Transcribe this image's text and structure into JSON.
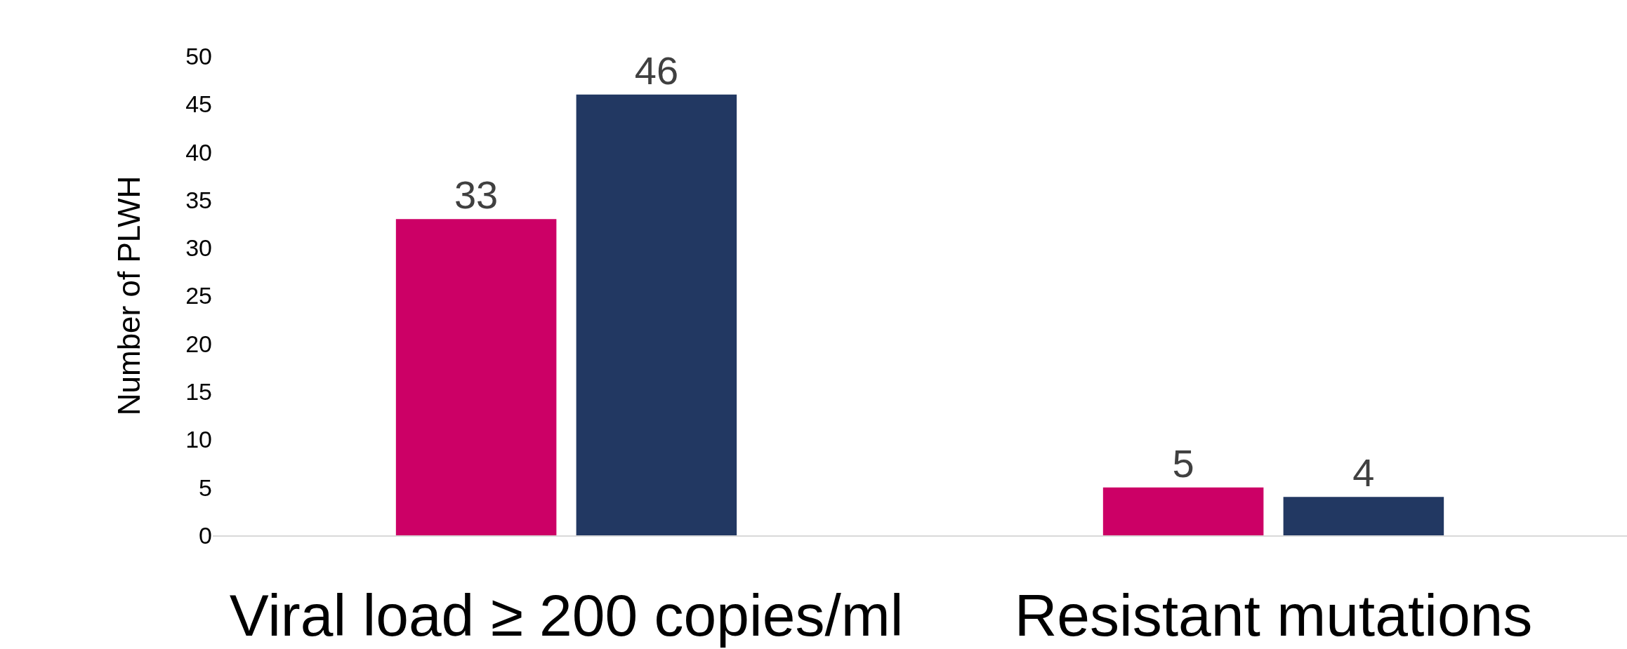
{
  "chart_data": {
    "type": "bar",
    "ylabel": "Number of PLWH",
    "categories": [
      "Viral load ≥ 200 copies/ml",
      "Resistant mutations"
    ],
    "series": [
      {
        "color": "#cc0066",
        "values": [
          33,
          5
        ]
      },
      {
        "color": "#223862",
        "values": [
          46,
          4
        ]
      }
    ],
    "ylim": [
      0,
      50
    ],
    "yticks": [
      0,
      5,
      10,
      15,
      20,
      25,
      30,
      35,
      40,
      45,
      50
    ],
    "grid": false,
    "legend": false,
    "data_labels": true
  }
}
